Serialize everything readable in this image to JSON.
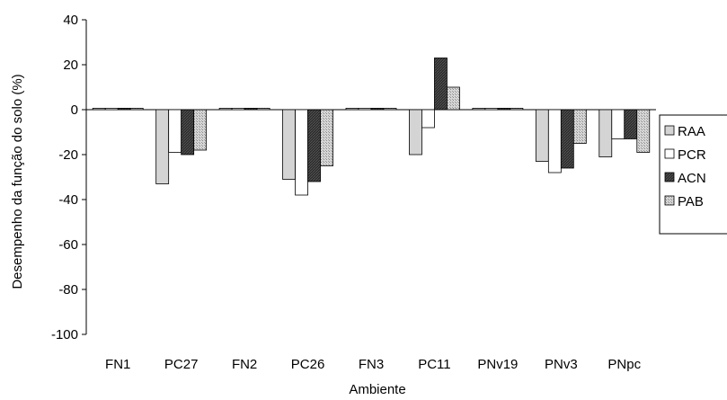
{
  "chart_data": {
    "type": "bar",
    "xlabel": "Ambiente",
    "ylabel": "Desempenho da função do solo (%)",
    "ylim": [
      -100,
      40
    ],
    "yticks": [
      40,
      20,
      0,
      -20,
      -40,
      -60,
      -80,
      -100
    ],
    "grid": false,
    "legend_position": "right",
    "categories": [
      "FN1",
      "PC27",
      "FN2",
      "PC26",
      "FN3",
      "PC11",
      "PNv19",
      "PNv3",
      "PNpc"
    ],
    "series": [
      {
        "name": "RAA",
        "values": [
          0,
          -33,
          0,
          -31,
          0,
          -20,
          0,
          -23,
          -21
        ],
        "color": "#d4d4d4",
        "pattern": "solid"
      },
      {
        "name": "PCR",
        "values": [
          0,
          -19,
          0,
          -38,
          0,
          -8,
          0,
          -28,
          -13
        ],
        "color": "#ffffff",
        "pattern": "solid"
      },
      {
        "name": "ACN",
        "values": [
          0,
          -20,
          0,
          -32,
          0,
          23,
          0,
          -26,
          -13
        ],
        "color": "#2b2b2b",
        "pattern": "hatch"
      },
      {
        "name": "PAB",
        "values": [
          0,
          -18,
          0,
          -25,
          0,
          10,
          0,
          -15,
          -19
        ],
        "color": "#cfcfcf",
        "pattern": "dots"
      }
    ]
  }
}
